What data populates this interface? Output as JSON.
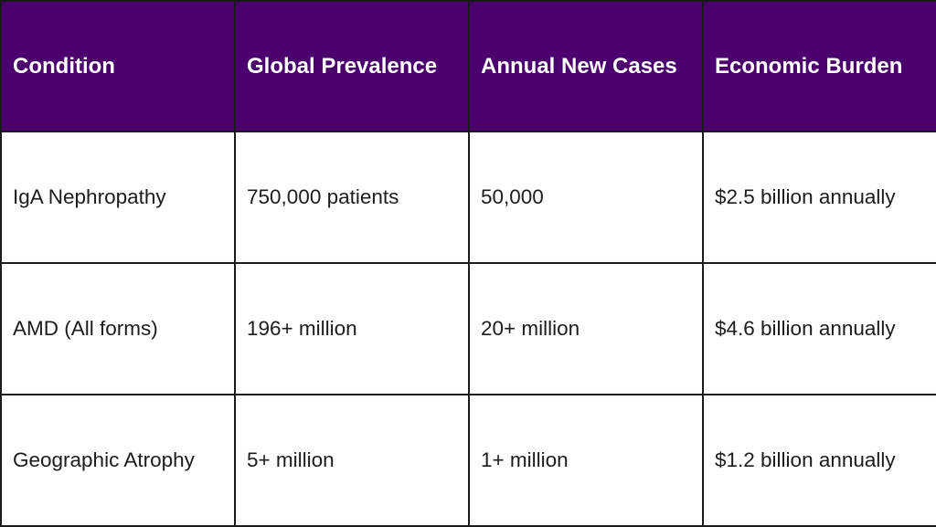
{
  "colors": {
    "header_background": "#4b006e",
    "header_text": "#ffffff",
    "border": "#1a1a1a",
    "body_text": "#1c1c1c"
  },
  "table": {
    "headers": [
      "Condition",
      "Global Prevalence",
      "Annual New Cases",
      "Economic Burden"
    ],
    "rows": [
      [
        "IgA Nephropathy",
        "750,000 patients",
        "50,000",
        "$2.5 billion annually"
      ],
      [
        "AMD (All forms)",
        "196+ million",
        "20+ million",
        "$4.6 billion annually"
      ],
      [
        "Geographic Atrophy",
        "5+ million",
        "1+ million",
        "$1.2 billion annually"
      ]
    ]
  }
}
